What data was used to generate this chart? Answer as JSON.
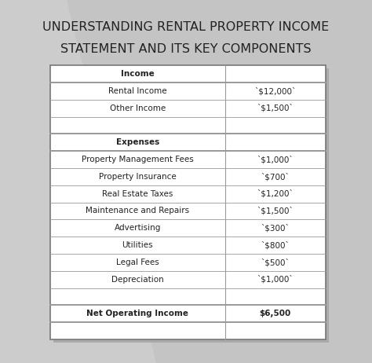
{
  "title_line1": "UNDERSTANDING RENTAL PROPERTY INCOME",
  "title_line2": "STATEMENT AND ITS KEY COMPONENTS",
  "title_fontsize": 11.5,
  "bg_color_top": "#d4d4d4",
  "bg_color": "#cccccc",
  "table_bg": "#ffffff",
  "rows": [
    {
      "label": "Income",
      "value": "",
      "bold": true,
      "spacer": false
    },
    {
      "label": "Rental Income",
      "value": "`$12,000`",
      "bold": false,
      "spacer": false
    },
    {
      "label": "Other Income",
      "value": "`$1,500`",
      "bold": false,
      "spacer": false
    },
    {
      "label": "",
      "value": "",
      "bold": false,
      "spacer": true
    },
    {
      "label": "Expenses",
      "value": "",
      "bold": true,
      "spacer": false
    },
    {
      "label": "Property Management Fees",
      "value": "`$1,000`",
      "bold": false,
      "spacer": false
    },
    {
      "label": "Property Insurance",
      "value": "`$700`",
      "bold": false,
      "spacer": false
    },
    {
      "label": "Real Estate Taxes",
      "value": "`$1,200`",
      "bold": false,
      "spacer": false
    },
    {
      "label": "Maintenance and Repairs",
      "value": "`$1,500`",
      "bold": false,
      "spacer": false
    },
    {
      "label": "Advertising",
      "value": "`$300`",
      "bold": false,
      "spacer": false
    },
    {
      "label": "Utilities",
      "value": "`$800`",
      "bold": false,
      "spacer": false
    },
    {
      "label": "Legal Fees",
      "value": "`$500`",
      "bold": false,
      "spacer": false
    },
    {
      "label": "Depreciation",
      "value": "`$1,000`",
      "bold": false,
      "spacer": false
    },
    {
      "label": "",
      "value": "",
      "bold": false,
      "spacer": true
    },
    {
      "label": "Net Operating Income",
      "value": "$6,500",
      "bold": true,
      "spacer": false
    },
    {
      "label": "",
      "value": "",
      "bold": false,
      "spacer": true
    }
  ],
  "border_color": "#777777",
  "line_color": "#999999",
  "text_color": "#222222"
}
